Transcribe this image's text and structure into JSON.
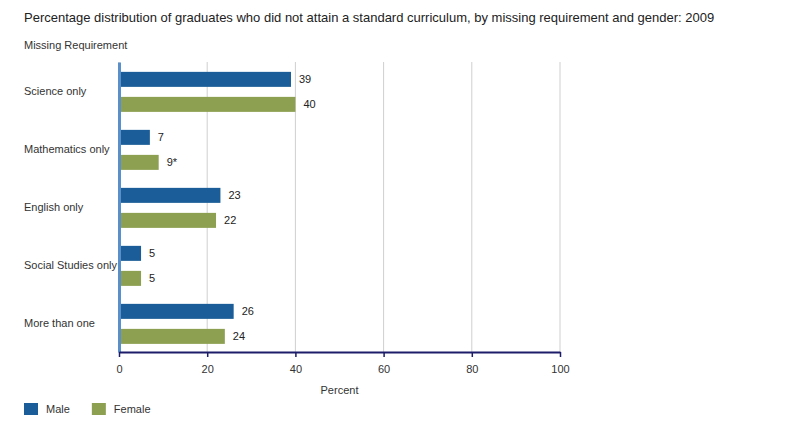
{
  "chart_data": {
    "type": "bar",
    "orientation": "horizontal",
    "title": "Percentage distribution of graduates who did not attain a standard curriculum, by missing requirement and gender: 2009",
    "y_label": "Missing Requirement",
    "x_label": "Percent",
    "categories": [
      "Science only",
      "Mathematics only",
      "English only",
      "Social Studies only",
      "More than one"
    ],
    "series": [
      {
        "name": "Male",
        "color": "#1b5d98",
        "values": [
          39,
          7,
          23,
          5,
          26
        ]
      },
      {
        "name": "Female",
        "color": "#8da052",
        "values": [
          40,
          9,
          22,
          5,
          24
        ],
        "value_labels": [
          "40",
          "9*",
          "22",
          "5",
          "24"
        ]
      }
    ],
    "xlim": [
      0,
      100
    ],
    "xticks": [
      0,
      20,
      40,
      60,
      80,
      100
    ],
    "grid": true,
    "legend": "bottom",
    "data_labels": true
  }
}
